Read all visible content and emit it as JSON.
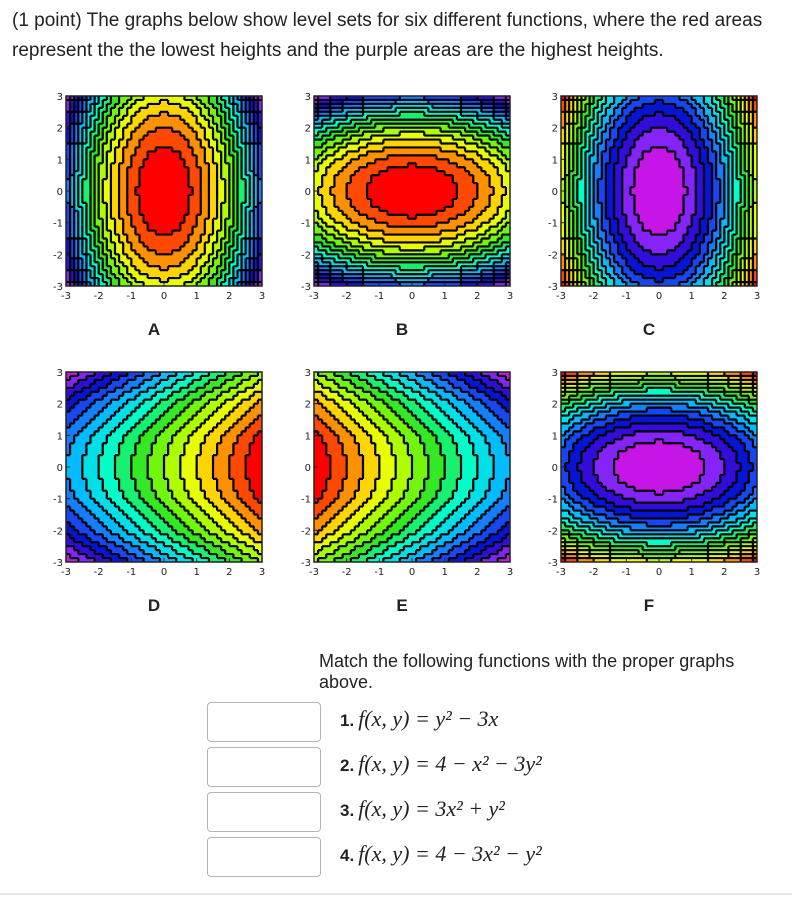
{
  "intro": "(1 point) The graphs below show level sets for six different functions, where the red areas represent the the lowest heights and the purple areas are the highest heights.",
  "chart_data": [
    {
      "type": "heatmap",
      "label": "A",
      "xlim": [
        -3,
        3
      ],
      "ylim": [
        -3,
        3
      ],
      "x_ticks": [
        "-3",
        "-2",
        "-1",
        "0",
        "1",
        "2",
        "3"
      ],
      "y_ticks": [
        "3",
        "2",
        "1",
        "0",
        "-1",
        "-2",
        "-3"
      ],
      "shape": "vertical ellipses, low at center",
      "colors_center_to_edge": [
        "red",
        "orange",
        "yellow",
        "green",
        "cyan",
        "blue",
        "purple"
      ]
    },
    {
      "type": "heatmap",
      "label": "B",
      "xlim": [
        -3,
        3
      ],
      "ylim": [
        -3,
        3
      ],
      "x_ticks": [
        "-3",
        "-2",
        "-1",
        "0",
        "1",
        "2",
        "3"
      ],
      "y_ticks": [
        "3",
        "2",
        "1",
        "0",
        "-1",
        "-2",
        "-3"
      ],
      "shape": "horizontal ellipses, low at center",
      "colors_center_to_edge": [
        "red",
        "orange",
        "yellow",
        "green",
        "cyan",
        "blue",
        "purple"
      ]
    },
    {
      "type": "heatmap",
      "label": "C",
      "xlim": [
        -3,
        3
      ],
      "ylim": [
        -3,
        3
      ],
      "x_ticks": [
        "-3",
        "-2",
        "-1",
        "0",
        "1",
        "2",
        "3"
      ],
      "y_ticks": [
        "3",
        "2",
        "1",
        "0",
        "-1",
        "-2",
        "-3"
      ],
      "shape": "vertical ellipses, high at center",
      "colors_center_to_edge": [
        "magenta",
        "purple",
        "blue",
        "cyan",
        "green",
        "yellow"
      ]
    },
    {
      "type": "heatmap",
      "label": "D",
      "xlim": [
        -3,
        3
      ],
      "ylim": [
        -3,
        3
      ],
      "x_ticks": [
        "-3",
        "-2",
        "-1",
        "0",
        "1",
        "2",
        "3"
      ],
      "y_ticks": [
        "3",
        "2",
        "1",
        "0",
        "-1",
        "-2",
        "-3"
      ],
      "shape": "parabolas opening right, increasing to the right",
      "colors_left_to_right": [
        "yellow",
        "green",
        "cyan",
        "blue",
        "purple",
        "magenta"
      ]
    },
    {
      "type": "heatmap",
      "label": "E",
      "xlim": [
        -3,
        3
      ],
      "ylim": [
        -3,
        3
      ],
      "x_ticks": [
        "-3",
        "-2",
        "-1",
        "0",
        "1",
        "2",
        "3"
      ],
      "y_ticks": [
        "3",
        "2",
        "1",
        "0",
        "-1",
        "-2",
        "-3"
      ],
      "shape": "parabolas opening right, decreasing to the right",
      "colors_left_to_right": [
        "purple",
        "blue",
        "cyan",
        "green",
        "yellow",
        "orange",
        "red"
      ]
    },
    {
      "type": "heatmap",
      "label": "F",
      "xlim": [
        -3,
        3
      ],
      "ylim": [
        -3,
        3
      ],
      "x_ticks": [
        "-3",
        "-2",
        "-1",
        "0",
        "1",
        "2",
        "3"
      ],
      "y_ticks": [
        "3",
        "2",
        "1",
        "0",
        "-1",
        "-2",
        "-3"
      ],
      "shape": "horizontal ellipses, high at center",
      "colors_center_to_edge": [
        "magenta",
        "purple",
        "blue",
        "cyan",
        "green",
        "yellow"
      ]
    }
  ],
  "instruction": "Match the following functions with the proper graphs above.",
  "questions": [
    {
      "number": "1.",
      "formula": "f(x, y) = y² − 3x",
      "answer": ""
    },
    {
      "number": "2.",
      "formula": "f(x, y) = 4 − x² − 3y²",
      "answer": ""
    },
    {
      "number": "3.",
      "formula": "f(x, y) = 3x² + y²",
      "answer": ""
    },
    {
      "number": "4.",
      "formula": "f(x, y) = 4 − 3x² − y²",
      "answer": ""
    }
  ]
}
